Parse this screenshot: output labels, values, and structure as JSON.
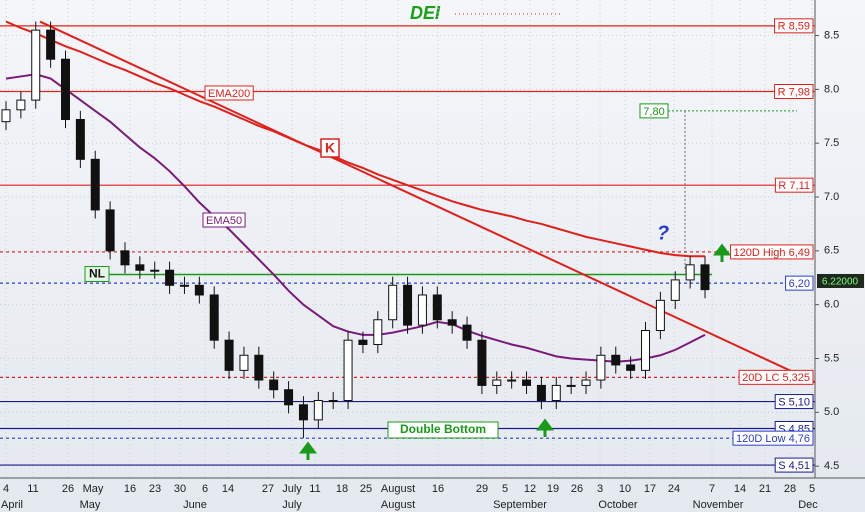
{
  "chart_data": {
    "type": "candlestick",
    "title": "DEI",
    "ylim": [
      4.39,
      8.83
    ],
    "yticks": [
      4.5,
      {
        "value": 5,
        "label": "5.0"
      },
      5.5,
      {
        "value": 6,
        "label": "6.0"
      },
      6.5,
      {
        "value": 7,
        "label": "7.0"
      },
      7.5,
      {
        "value": 8,
        "label": "8.0"
      },
      8.5
    ],
    "day_labels": [
      "4",
      "11",
      "26",
      "May",
      "16",
      "23",
      "30",
      "6",
      "14",
      "27",
      "July",
      "11",
      "18",
      "25",
      "August",
      "16",
      "29",
      "5",
      "12",
      "19",
      "26",
      "3",
      "10",
      "17",
      "24",
      "7",
      "14",
      "21",
      "28",
      "5"
    ],
    "month_labels": [
      "April",
      "May",
      "June",
      "July",
      "August",
      "September",
      "October",
      "November",
      "Dec"
    ],
    "open": [
      7.7,
      7.81,
      7.9,
      8.55,
      8.28,
      7.72,
      7.35,
      6.88,
      6.5,
      6.37,
      6.32,
      6.32,
      6.18,
      6.18,
      6.09,
      5.67,
      5.39,
      5.53,
      5.3,
      5.21,
      5.07,
      4.93,
      5.11,
      5.11,
      5.67,
      5.63,
      5.86,
      6.18,
      5.81,
      6.09,
      5.86,
      5.81,
      5.67,
      5.25,
      5.3,
      5.3,
      5.25,
      5.11,
      5.25,
      5.25,
      5.3,
      5.53,
      5.44,
      5.39,
      5.76,
      6.04,
      6.23,
      6.37
    ],
    "high": [
      7.89,
      7.98,
      8.63,
      8.63,
      8.36,
      7.8,
      7.43,
      6.96,
      6.58,
      6.45,
      6.4,
      6.4,
      6.26,
      6.26,
      6.17,
      5.75,
      5.61,
      5.61,
      5.38,
      5.29,
      5.15,
      5.19,
      5.19,
      5.75,
      5.75,
      5.94,
      6.26,
      6.26,
      6.17,
      6.17,
      5.94,
      5.89,
      5.75,
      5.38,
      5.38,
      5.38,
      5.33,
      5.33,
      5.33,
      5.38,
      5.61,
      5.61,
      5.52,
      5.84,
      6.12,
      6.31,
      6.45,
      6.45
    ],
    "low": [
      7.62,
      7.73,
      7.82,
      8.2,
      7.64,
      7.27,
      6.8,
      6.42,
      6.29,
      6.24,
      6.24,
      6.1,
      6.1,
      6.01,
      5.59,
      5.31,
      5.31,
      5.22,
      5.13,
      4.99,
      4.76,
      4.85,
      5.03,
      5.03,
      5.55,
      5.55,
      5.78,
      5.73,
      5.73,
      5.78,
      5.73,
      5.59,
      5.17,
      5.17,
      5.22,
      5.17,
      5.03,
      5.03,
      5.17,
      5.17,
      5.22,
      5.36,
      5.31,
      5.31,
      5.68,
      5.96,
      6.15,
      6.06
    ],
    "close": [
      7.81,
      7.9,
      8.55,
      8.28,
      7.72,
      7.35,
      6.88,
      6.5,
      6.37,
      6.32,
      6.32,
      6.18,
      6.18,
      6.09,
      5.67,
      5.39,
      5.53,
      5.3,
      5.21,
      5.07,
      4.93,
      5.11,
      5.11,
      5.67,
      5.63,
      5.86,
      6.18,
      5.81,
      6.09,
      5.86,
      5.81,
      5.67,
      5.25,
      5.3,
      5.3,
      5.25,
      5.11,
      5.25,
      5.25,
      5.3,
      5.53,
      5.44,
      5.39,
      5.76,
      6.04,
      6.23,
      6.37,
      6.14
    ],
    "series": [
      {
        "name": "EMA200",
        "color": "#e0201b",
        "values": [
          8.63,
          8.57,
          8.52,
          8.46,
          8.4,
          8.35,
          8.29,
          8.23,
          8.18,
          8.12,
          8.06,
          8.01,
          7.95,
          7.89,
          7.84,
          7.78,
          7.72,
          7.66,
          7.61,
          7.55,
          7.49,
          7.44,
          7.38,
          7.32,
          7.27,
          7.21,
          7.16,
          7.11,
          7.06,
          7.01,
          6.96,
          6.92,
          6.88,
          6.85,
          6.82,
          6.78,
          6.75,
          6.71,
          6.67,
          6.63,
          6.6,
          6.57,
          6.54,
          6.51,
          6.48,
          6.46,
          6.45,
          6.45
        ]
      },
      {
        "name": "EMA50",
        "color": "#7a1a7a",
        "values": [
          8.1,
          8.12,
          8.14,
          8.1,
          8.0,
          7.9,
          7.8,
          7.7,
          7.58,
          7.46,
          7.36,
          7.24,
          7.1,
          6.95,
          6.82,
          6.7,
          6.56,
          6.42,
          6.28,
          6.13,
          6.0,
          5.9,
          5.8,
          5.75,
          5.72,
          5.72,
          5.74,
          5.77,
          5.8,
          5.84,
          5.82,
          5.76,
          5.71,
          5.67,
          5.63,
          5.6,
          5.56,
          5.52,
          5.5,
          5.49,
          5.48,
          5.47,
          5.48,
          5.5,
          5.53,
          5.58,
          5.65,
          5.72
        ]
      }
    ],
    "trendline": {
      "label": "K",
      "color": "#e0201b",
      "values": [
        8.63,
        5.28
      ]
    },
    "levels": [
      {
        "value": 8.59,
        "label": "R 8,59",
        "color": "#e0201b",
        "style": "solid"
      },
      {
        "value": 7.98,
        "label": "R 7,98",
        "color": "#e0201b",
        "style": "solid"
      },
      {
        "value": 7.11,
        "label": "R 7,11",
        "color": "#e0201b",
        "style": "solid"
      },
      {
        "value": 6.49,
        "label": "120D High 6,49",
        "color": "#e0201b",
        "style": "dashed"
      },
      {
        "value": 6.2,
        "label": "6,20",
        "color": "#2a3ccf",
        "style": "dashed"
      },
      {
        "value": 5.325,
        "label": "20D LC 5,325",
        "color": "#e0201b",
        "style": "dashed"
      },
      {
        "value": 5.1,
        "label": "S 5,10",
        "color": "#1a1a8a",
        "style": "solid"
      },
      {
        "value": 4.85,
        "label": "S 4,85",
        "color": "#1a1a8a",
        "style": "solid"
      },
      {
        "value": 4.76,
        "label": "120D Low 4,76",
        "color": "#2a3ccf",
        "style": "dashed"
      },
      {
        "value": 4.51,
        "label": "S 4,51",
        "color": "#1a1a8a",
        "style": "solid"
      }
    ],
    "neckline": {
      "value": 6.28,
      "label": "NL",
      "color": "#1a9a1a"
    },
    "target": {
      "value": 7.8,
      "label": "7,80"
    },
    "last": {
      "value": 6.22,
      "label": "6.22000"
    },
    "annotations": {
      "question": "?",
      "pattern": "Double Bottom"
    },
    "grid": true
  }
}
